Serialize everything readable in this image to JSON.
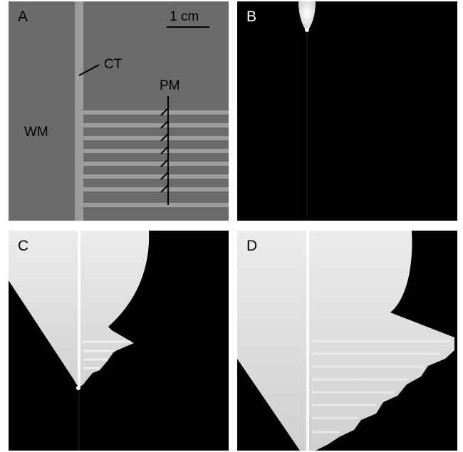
{
  "panels": [
    {
      "id": "A",
      "label": "A"
    },
    {
      "id": "B",
      "label": "B"
    },
    {
      "id": "C",
      "label": "C"
    },
    {
      "id": "D",
      "label": "D"
    }
  ],
  "annotations": {
    "scale_bar": "1 cm",
    "ct": "CT",
    "pm": "PM",
    "wm": "WM"
  },
  "colors": {
    "tissue_gray": "#6b6b6b",
    "structure_gray": "#9c9c9c",
    "background_black": "#000000",
    "front_white": "#ececec"
  }
}
